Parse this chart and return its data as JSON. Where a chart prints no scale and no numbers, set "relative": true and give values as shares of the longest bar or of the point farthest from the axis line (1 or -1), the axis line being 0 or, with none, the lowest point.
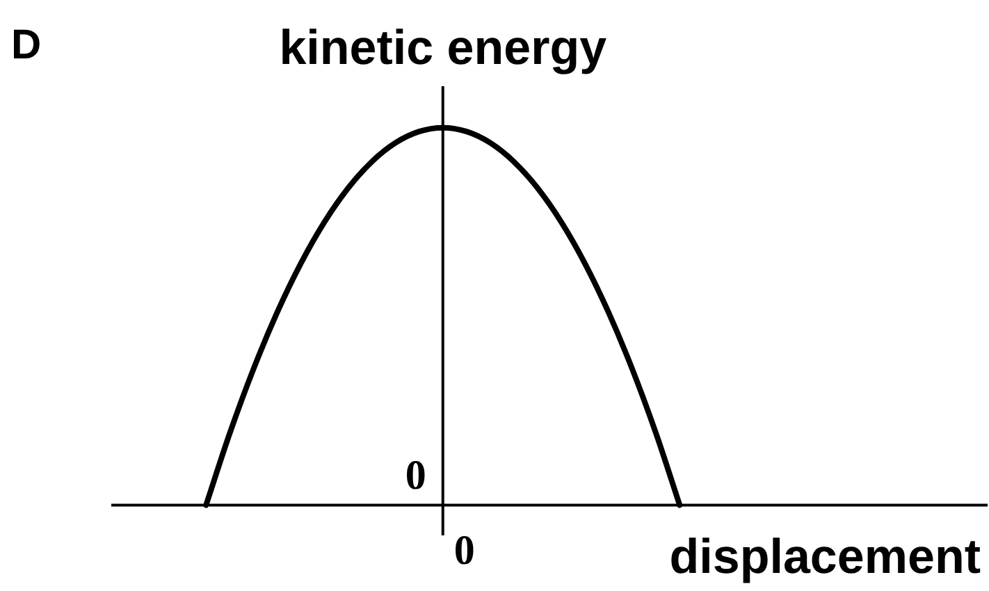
{
  "chart_data": {
    "type": "line",
    "relative": true,
    "title": "D",
    "xlabel": "displacement",
    "ylabel": "kinetic energy",
    "annotations": [
      "0",
      "0"
    ],
    "categories": [
      null,
      null,
      null,
      null,
      null,
      null,
      null,
      null,
      null,
      null,
      null,
      null,
      null,
      null,
      null,
      null,
      null,
      null,
      null,
      null,
      null,
      null,
      null,
      null,
      null,
      null,
      null,
      null,
      null,
      null,
      null,
      null,
      null,
      null,
      null,
      null,
      null,
      null
    ],
    "series": [
      {
        "color": "#000000",
        "values": [
          null,
          null,
          null,
          null,
          0,
          0.19,
          0.36,
          0.51,
          0.64,
          0.75,
          0.84,
          0.91,
          0.96,
          0.99,
          1,
          0.99,
          0.96,
          0.91,
          0.84,
          0.75,
          0.64,
          0.51,
          0.36,
          0.19,
          0,
          null,
          null,
          null,
          null,
          null,
          null,
          null,
          null,
          null,
          null,
          null,
          null,
          null
        ]
      }
    ],
    "marker": "none",
    "line_style": "solid"
  }
}
